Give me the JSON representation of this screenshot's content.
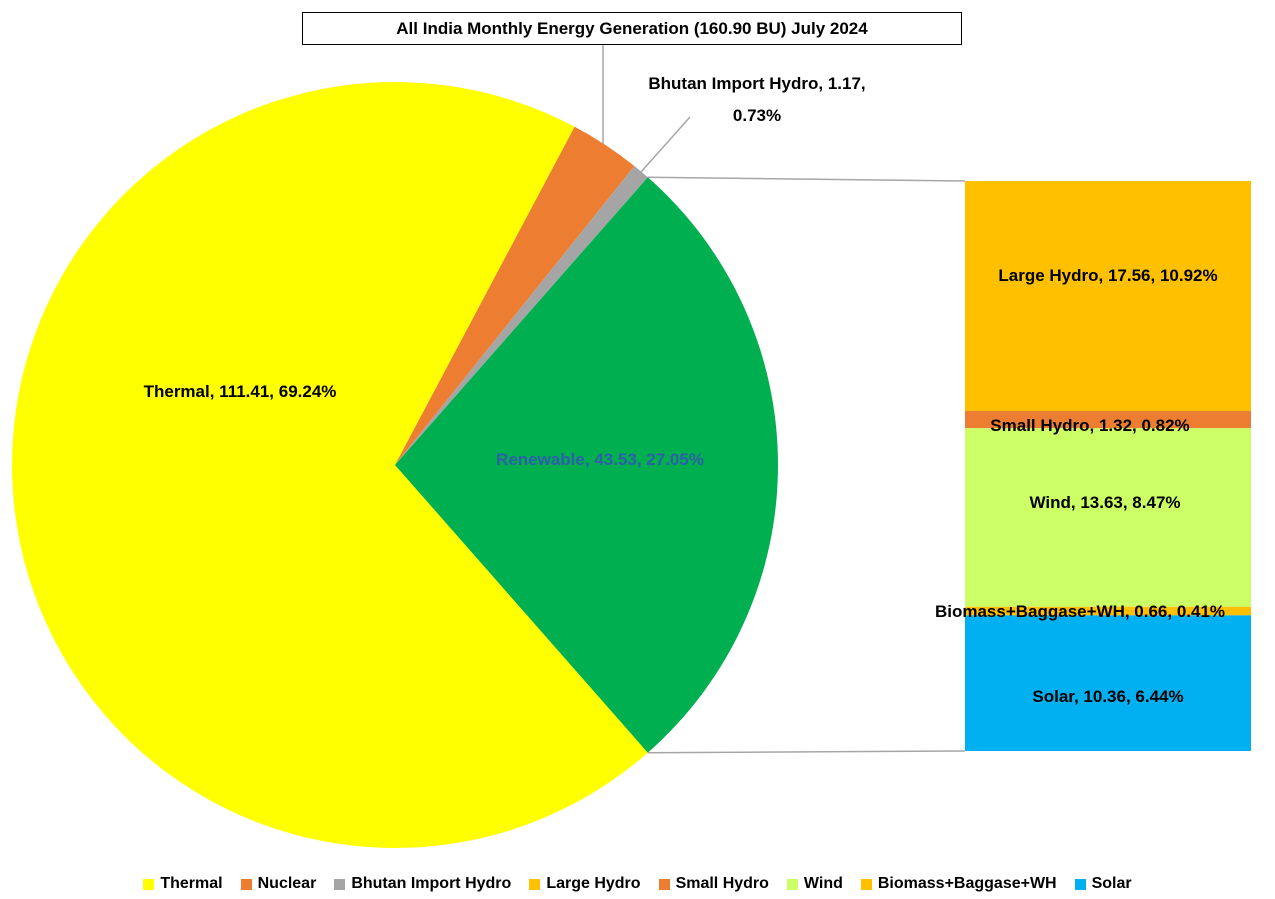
{
  "chart_data": {
    "type": "pie-of-bar",
    "title": "All India Monthly Energy Generation  (160.90 BU) July 2024",
    "pie": {
      "categories": [
        "Thermal",
        "Nuclear",
        "Bhutan Import Hydro",
        "Renewable"
      ],
      "values": [
        111.41,
        4.79,
        1.17,
        43.53
      ],
      "value_labels": [
        "Thermal, 111.41, 69.24%",
        null,
        "Bhutan Import Hydro, 1.17, 0.73%",
        "Renewable, 43.53, 27.05%"
      ],
      "colors": [
        "#ffff00",
        "#ed7d31",
        "#a5a5a5",
        "#00b050"
      ]
    },
    "bar": {
      "categories": [
        "Large Hydro",
        "Small Hydro",
        "Wind",
        "Biomass+Baggase+WH",
        "Solar"
      ],
      "values": [
        17.56,
        1.32,
        13.63,
        0.66,
        10.36
      ],
      "value_labels": [
        "Large Hydro, 17.56, 10.92%",
        "Small Hydro, 1.32, 0.82%",
        "Wind, 13.63, 8.47%",
        "Biomass+Baggase+WH, 0.66, 0.41%",
        "Solar, 10.36, 6.44%"
      ],
      "colors": [
        "#ffc000",
        "#ed7d31",
        "#ccff66",
        "#ffc000",
        "#00b0f0"
      ]
    },
    "legend": "bottom"
  }
}
